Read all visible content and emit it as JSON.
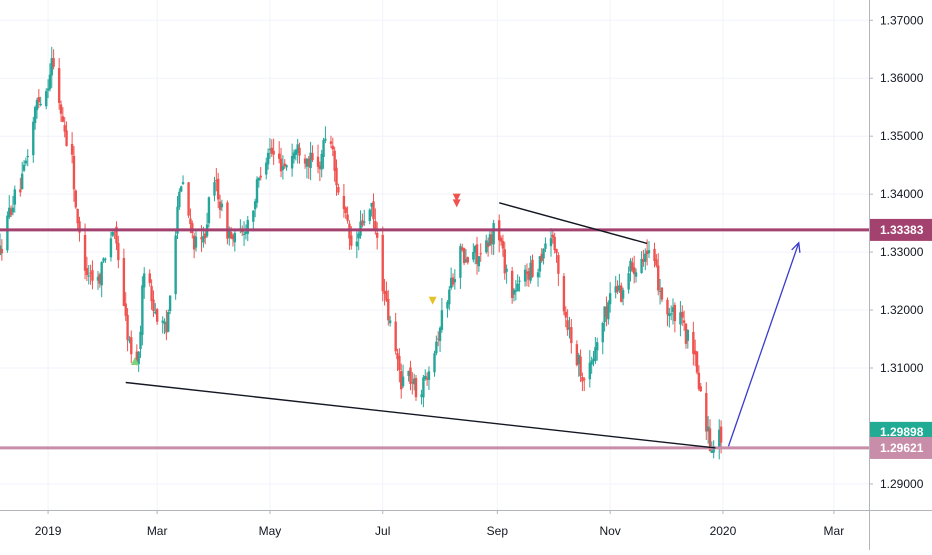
{
  "chart_data": {
    "type": "candlestick",
    "title": "",
    "xlabel": "",
    "ylabel": "",
    "ylim": [
      1.2855,
      1.3735
    ],
    "date_range": [
      "2018-12-06",
      "2020-03-20"
    ],
    "grid": true,
    "y_ticks": [
      "1.37000",
      "1.36000",
      "1.35000",
      "1.34000",
      "1.33000",
      "1.32000",
      "1.31000",
      "1.29000"
    ],
    "y_tick_values": [
      1.37,
      1.36,
      1.35,
      1.34,
      1.33,
      1.32,
      1.31,
      1.29
    ],
    "x_ticks": [
      {
        "label": "2019",
        "date": "2019-01-01"
      },
      {
        "label": "Mar",
        "date": "2019-03-01"
      },
      {
        "label": "May",
        "date": "2019-05-01"
      },
      {
        "label": "Jul",
        "date": "2019-07-01"
      },
      {
        "label": "Sep",
        "date": "2019-09-01"
      },
      {
        "label": "Nov",
        "date": "2019-11-01"
      },
      {
        "label": "2020",
        "date": "2020-01-01"
      },
      {
        "label": "Mar",
        "date": "2020-03-01"
      }
    ],
    "up_color": "#26a69a",
    "down_color": "#ef5350",
    "price_path": [
      [
        "2018-12-06",
        1.33
      ],
      [
        "2018-12-12",
        1.338
      ],
      [
        "2018-12-18",
        1.342
      ],
      [
        "2018-12-22",
        1.349
      ],
      [
        "2018-12-26",
        1.356
      ],
      [
        "2018-12-31",
        1.358
      ],
      [
        "2019-01-03",
        1.363
      ],
      [
        "2019-01-07",
        1.356
      ],
      [
        "2019-01-10",
        1.351
      ],
      [
        "2019-01-14",
        1.346
      ],
      [
        "2019-01-17",
        1.334
      ],
      [
        "2019-01-22",
        1.327
      ],
      [
        "2019-01-28",
        1.325
      ],
      [
        "2019-02-01",
        1.33
      ],
      [
        "2019-02-05",
        1.334
      ],
      [
        "2019-02-09",
        1.328
      ],
      [
        "2019-02-12",
        1.318
      ],
      [
        "2019-02-15",
        1.312
      ],
      [
        "2019-02-19",
        1.312
      ],
      [
        "2019-02-22",
        1.328
      ],
      [
        "2019-02-26",
        1.322
      ],
      [
        "2019-03-02",
        1.318
      ],
      [
        "2019-03-06",
        1.316
      ],
      [
        "2019-03-08",
        1.324
      ],
      [
        "2019-03-12",
        1.338
      ],
      [
        "2019-03-15",
        1.342
      ],
      [
        "2019-03-19",
        1.334
      ],
      [
        "2019-03-23",
        1.33
      ],
      [
        "2019-03-26",
        1.332
      ],
      [
        "2019-03-29",
        1.338
      ],
      [
        "2019-04-02",
        1.342
      ],
      [
        "2019-04-06",
        1.335
      ],
      [
        "2019-04-11",
        1.332
      ],
      [
        "2019-04-16",
        1.333
      ],
      [
        "2019-04-22",
        1.338
      ],
      [
        "2019-04-26",
        1.344
      ],
      [
        "2019-04-30",
        1.348
      ],
      [
        "2019-05-04",
        1.346
      ],
      [
        "2019-05-09",
        1.345
      ],
      [
        "2019-05-13",
        1.347
      ],
      [
        "2019-05-17",
        1.348
      ],
      [
        "2019-05-22",
        1.346
      ],
      [
        "2019-05-27",
        1.344
      ],
      [
        "2019-05-31",
        1.35
      ],
      [
        "2019-06-02",
        1.352
      ],
      [
        "2019-06-05",
        1.344
      ],
      [
        "2019-06-09",
        1.338
      ],
      [
        "2019-06-12",
        1.334
      ],
      [
        "2019-06-15",
        1.329
      ],
      [
        "2019-06-18",
        1.333
      ],
      [
        "2019-06-21",
        1.336
      ],
      [
        "2019-06-25",
        1.337
      ],
      [
        "2019-06-29",
        1.33
      ],
      [
        "2019-07-02",
        1.322
      ],
      [
        "2019-07-07",
        1.314
      ],
      [
        "2019-07-11",
        1.308
      ],
      [
        "2019-07-15",
        1.309
      ],
      [
        "2019-07-19",
        1.306
      ],
      [
        "2019-07-23",
        1.307
      ],
      [
        "2019-07-26",
        1.311
      ],
      [
        "2019-07-30",
        1.315
      ],
      [
        "2019-08-03",
        1.32
      ],
      [
        "2019-08-08",
        1.326
      ],
      [
        "2019-08-12",
        1.33
      ],
      [
        "2019-08-15",
        1.328
      ],
      [
        "2019-08-19",
        1.33
      ],
      [
        "2019-08-23",
        1.329
      ],
      [
        "2019-08-27",
        1.331
      ],
      [
        "2019-08-30",
        1.334
      ],
      [
        "2019-09-02",
        1.333
      ],
      [
        "2019-09-05",
        1.328
      ],
      [
        "2019-09-09",
        1.323
      ],
      [
        "2019-09-13",
        1.324
      ],
      [
        "2019-09-17",
        1.327
      ],
      [
        "2019-09-21",
        1.326
      ],
      [
        "2019-09-24",
        1.329
      ],
      [
        "2019-09-27",
        1.332
      ],
      [
        "2019-10-01",
        1.333
      ],
      [
        "2019-10-04",
        1.326
      ],
      [
        "2019-10-08",
        1.319
      ],
      [
        "2019-10-12",
        1.314
      ],
      [
        "2019-10-16",
        1.31
      ],
      [
        "2019-10-19",
        1.308
      ],
      [
        "2019-10-23",
        1.312
      ],
      [
        "2019-10-26",
        1.316
      ],
      [
        "2019-10-30",
        1.32
      ],
      [
        "2019-11-03",
        1.325
      ],
      [
        "2019-11-07",
        1.323
      ],
      [
        "2019-11-11",
        1.327
      ],
      [
        "2019-11-15",
        1.328
      ],
      [
        "2019-11-19",
        1.33
      ],
      [
        "2019-11-23",
        1.329
      ],
      [
        "2019-11-27",
        1.325
      ],
      [
        "2019-12-01",
        1.32
      ],
      [
        "2019-12-05",
        1.319
      ],
      [
        "2019-12-09",
        1.318
      ],
      [
        "2019-12-13",
        1.315
      ],
      [
        "2019-12-17",
        1.311
      ],
      [
        "2019-12-21",
        1.304
      ],
      [
        "2019-12-25",
        1.297
      ],
      [
        "2019-12-28",
        1.298
      ],
      [
        "2019-12-31",
        1.2982
      ]
    ],
    "horizontal_levels": [
      {
        "value": 1.33383,
        "label": "1.33383",
        "color": "#a4426f"
      },
      {
        "value": 1.29621,
        "label": "1.29621",
        "color": "#c78da9"
      }
    ],
    "last_price": {
      "value": 1.29898,
      "label": "1.29898",
      "color": "#22ab94"
    },
    "trendlines": [
      {
        "from": [
          "2019-02-12",
          1.3075
        ],
        "to": [
          "2019-12-28",
          1.2962
        ]
      },
      {
        "from": [
          "2019-09-02",
          1.3385
        ],
        "to": [
          "2019-11-21",
          1.3315
        ]
      }
    ],
    "projection_arrow": {
      "from": [
        "2020-01-04",
        1.2965
      ],
      "to": [
        "2020-02-11",
        1.3316
      ],
      "color": "#3a3acf"
    },
    "markers": [
      {
        "shape": "down-triangle",
        "date": "2019-08-10",
        "value": 1.3394,
        "color": "#ef5350"
      },
      {
        "shape": "down-triangle",
        "date": "2019-08-10",
        "value": 1.3384,
        "color": "#ef5350"
      },
      {
        "shape": "down-triangle",
        "date": "2019-07-28",
        "value": 1.3216,
        "color": "#e5c228"
      },
      {
        "shape": "up-triangle",
        "date": "2019-02-17",
        "value": 1.3112,
        "color": "#7fd37a"
      }
    ]
  }
}
